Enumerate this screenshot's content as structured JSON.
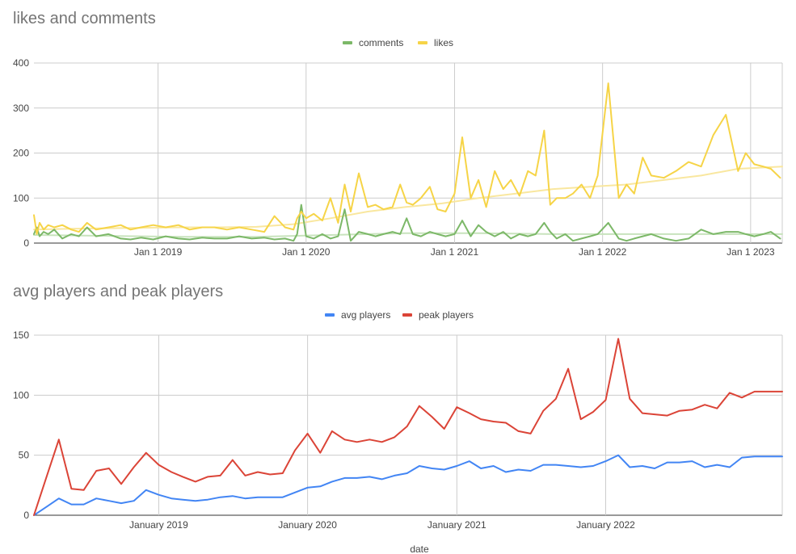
{
  "chart_data": [
    {
      "type": "line",
      "title": "likes and comments",
      "legend": "top",
      "grid": true,
      "xlabel": "",
      "ylabel": "",
      "ylim": [
        0,
        400
      ],
      "yticks": [
        0,
        100,
        200,
        300,
        400
      ],
      "xlim": [
        "2018-03-01",
        "2023-03-20"
      ],
      "xticks": [
        {
          "date": "2019-01-01",
          "label": "Jan 1 2019"
        },
        {
          "date": "2020-01-01",
          "label": "Jan 1 2020"
        },
        {
          "date": "2021-01-01",
          "label": "Jan 1 2021"
        },
        {
          "date": "2022-01-01",
          "label": "Jan 1 2022"
        },
        {
          "date": "2023-01-01",
          "label": "Jan 1 2023"
        }
      ],
      "series": [
        {
          "name": "comments",
          "color": "#7cb868",
          "x": [
            "2018-03-01",
            "2018-03-08",
            "2018-03-15",
            "2018-03-25",
            "2018-04-05",
            "2018-04-20",
            "2018-05-10",
            "2018-06-01",
            "2018-06-20",
            "2018-07-10",
            "2018-08-01",
            "2018-09-01",
            "2018-10-01",
            "2018-10-25",
            "2018-11-20",
            "2018-12-20",
            "2019-01-20",
            "2019-02-20",
            "2019-03-20",
            "2019-04-20",
            "2019-05-20",
            "2019-06-20",
            "2019-07-20",
            "2019-08-20",
            "2019-09-20",
            "2019-10-15",
            "2019-11-10",
            "2019-12-01",
            "2019-12-10",
            "2019-12-20",
            "2020-01-01",
            "2020-01-20",
            "2020-02-10",
            "2020-03-01",
            "2020-03-20",
            "2020-04-05",
            "2020-04-20",
            "2020-05-10",
            "2020-06-01",
            "2020-06-20",
            "2020-07-10",
            "2020-08-01",
            "2020-08-20",
            "2020-09-05",
            "2020-09-20",
            "2020-10-10",
            "2020-11-01",
            "2020-11-20",
            "2020-12-10",
            "2021-01-01",
            "2021-01-20",
            "2021-02-10",
            "2021-03-01",
            "2021-03-20",
            "2021-04-10",
            "2021-05-01",
            "2021-05-20",
            "2021-06-10",
            "2021-07-01",
            "2021-07-20",
            "2021-08-10",
            "2021-08-25",
            "2021-09-10",
            "2021-10-01",
            "2021-10-20",
            "2021-11-10",
            "2021-12-01",
            "2021-12-20",
            "2022-01-15",
            "2022-02-10",
            "2022-03-01",
            "2022-03-20",
            "2022-04-10",
            "2022-05-01",
            "2022-06-01",
            "2022-07-01",
            "2022-08-01",
            "2022-09-01",
            "2022-10-01",
            "2022-11-01",
            "2022-12-01",
            "2022-12-20",
            "2023-01-10",
            "2023-02-01",
            "2023-02-20",
            "2023-03-15"
          ],
          "values": [
            20,
            35,
            15,
            25,
            20,
            30,
            10,
            20,
            15,
            35,
            15,
            20,
            10,
            8,
            12,
            8,
            15,
            10,
            8,
            12,
            10,
            10,
            15,
            10,
            12,
            8,
            10,
            5,
            20,
            85,
            15,
            10,
            20,
            10,
            15,
            75,
            5,
            25,
            20,
            15,
            20,
            25,
            20,
            55,
            20,
            15,
            25,
            20,
            15,
            20,
            50,
            15,
            40,
            25,
            15,
            25,
            10,
            20,
            15,
            20,
            45,
            25,
            10,
            20,
            5,
            10,
            15,
            20,
            45,
            10,
            5,
            10,
            15,
            20,
            10,
            5,
            10,
            30,
            20,
            25,
            25,
            20,
            15,
            20,
            25,
            10
          ]
        },
        {
          "name": "likes",
          "color": "#f6d447",
          "x": [
            "2018-03-01",
            "2018-03-08",
            "2018-03-15",
            "2018-03-25",
            "2018-04-05",
            "2018-04-20",
            "2018-05-10",
            "2018-06-01",
            "2018-06-20",
            "2018-07-10",
            "2018-08-01",
            "2018-09-01",
            "2018-10-01",
            "2018-10-25",
            "2018-11-20",
            "2018-12-20",
            "2019-01-20",
            "2019-02-20",
            "2019-03-20",
            "2019-04-20",
            "2019-05-20",
            "2019-06-20",
            "2019-07-20",
            "2019-08-20",
            "2019-09-20",
            "2019-10-15",
            "2019-11-10",
            "2019-12-01",
            "2019-12-10",
            "2019-12-20",
            "2020-01-01",
            "2020-01-20",
            "2020-02-10",
            "2020-03-01",
            "2020-03-20",
            "2020-04-05",
            "2020-04-20",
            "2020-05-10",
            "2020-06-01",
            "2020-06-20",
            "2020-07-10",
            "2020-08-01",
            "2020-08-20",
            "2020-09-05",
            "2020-09-20",
            "2020-10-10",
            "2020-11-01",
            "2020-11-20",
            "2020-12-10",
            "2021-01-01",
            "2021-01-20",
            "2021-02-10",
            "2021-03-01",
            "2021-03-20",
            "2021-04-10",
            "2021-05-01",
            "2021-05-20",
            "2021-06-10",
            "2021-07-01",
            "2021-07-20",
            "2021-08-10",
            "2021-08-25",
            "2021-09-10",
            "2021-10-01",
            "2021-10-20",
            "2021-11-10",
            "2021-12-01",
            "2021-12-20",
            "2022-01-15",
            "2022-02-10",
            "2022-03-01",
            "2022-03-20",
            "2022-04-10",
            "2022-05-01",
            "2022-06-01",
            "2022-07-01",
            "2022-08-01",
            "2022-09-01",
            "2022-10-01",
            "2022-11-01",
            "2022-12-01",
            "2022-12-20",
            "2023-01-10",
            "2023-02-01",
            "2023-02-20",
            "2023-03-15"
          ],
          "values": [
            62,
            20,
            45,
            30,
            40,
            35,
            40,
            30,
            25,
            45,
            30,
            35,
            40,
            30,
            35,
            40,
            35,
            40,
            30,
            35,
            35,
            30,
            35,
            30,
            25,
            60,
            35,
            30,
            55,
            70,
            55,
            65,
            50,
            100,
            45,
            130,
            70,
            155,
            80,
            85,
            75,
            80,
            130,
            90,
            85,
            100,
            125,
            75,
            70,
            110,
            235,
            100,
            140,
            80,
            160,
            120,
            140,
            105,
            160,
            150,
            250,
            85,
            100,
            100,
            110,
            130,
            100,
            150,
            355,
            100,
            130,
            110,
            190,
            150,
            145,
            160,
            180,
            170,
            240,
            285,
            160,
            200,
            175,
            170,
            165,
            145
          ]
        },
        {
          "name": "",
          "color": "#f9e79f",
          "x": [
            "2018-03-01",
            "2018-06-01",
            "2018-09-01",
            "2018-12-01",
            "2019-03-01",
            "2019-06-01",
            "2019-09-01",
            "2019-12-01",
            "2020-03-01",
            "2020-06-01",
            "2020-09-01",
            "2020-12-01",
            "2021-03-01",
            "2021-06-01",
            "2021-09-01",
            "2021-12-01",
            "2022-03-01",
            "2022-06-01",
            "2022-09-01",
            "2022-12-01",
            "2023-03-20"
          ],
          "values": [
            30,
            32,
            33,
            34,
            35,
            35,
            36,
            42,
            55,
            70,
            80,
            88,
            100,
            110,
            120,
            125,
            130,
            140,
            150,
            165,
            170
          ]
        },
        {
          "name": "",
          "color": "#c8e3bd",
          "x": [
            "2018-03-01",
            "2018-09-01",
            "2019-03-01",
            "2019-09-01",
            "2020-03-01",
            "2020-09-01",
            "2021-03-01",
            "2021-09-01",
            "2022-03-01",
            "2022-09-01",
            "2023-03-20"
          ],
          "values": [
            18,
            16,
            14,
            14,
            18,
            22,
            22,
            20,
            20,
            20,
            20
          ]
        }
      ]
    },
    {
      "type": "line",
      "title": "avg players and peak players",
      "legend": "top",
      "grid": true,
      "xlabel": "date",
      "ylabel": "",
      "ylim": [
        0,
        150
      ],
      "yticks": [
        0,
        50,
        100,
        150
      ],
      "xlim": [
        "2018-03-01",
        "2023-03-10"
      ],
      "xticks": [
        {
          "date": "2019-01-01",
          "label": "January 2019"
        },
        {
          "date": "2020-01-01",
          "label": "January 2020"
        },
        {
          "date": "2021-01-01",
          "label": "January 2021"
        },
        {
          "date": "2022-01-01",
          "label": "January 2022"
        }
      ],
      "series": [
        {
          "name": "avg players",
          "color": "#4285f4",
          "x": [
            "2018-03-01",
            "2018-04-01",
            "2018-05-01",
            "2018-06-01",
            "2018-07-01",
            "2018-08-01",
            "2018-09-01",
            "2018-10-01",
            "2018-11-01",
            "2018-12-01",
            "2019-01-01",
            "2019-02-01",
            "2019-03-01",
            "2019-04-01",
            "2019-05-01",
            "2019-06-01",
            "2019-07-01",
            "2019-08-01",
            "2019-09-01",
            "2019-10-01",
            "2019-11-01",
            "2019-12-01",
            "2020-01-01",
            "2020-02-01",
            "2020-03-01",
            "2020-04-01",
            "2020-05-01",
            "2020-06-01",
            "2020-07-01",
            "2020-08-01",
            "2020-09-01",
            "2020-10-01",
            "2020-11-01",
            "2020-12-01",
            "2021-01-01",
            "2021-02-01",
            "2021-03-01",
            "2021-04-01",
            "2021-05-01",
            "2021-06-01",
            "2021-07-01",
            "2021-08-01",
            "2021-09-01",
            "2021-10-01",
            "2021-11-01",
            "2021-12-01",
            "2022-01-01",
            "2022-02-01",
            "2022-03-01",
            "2022-04-01",
            "2022-05-01",
            "2022-06-01",
            "2022-07-01",
            "2022-08-01",
            "2022-09-01",
            "2022-10-01",
            "2022-11-01",
            "2022-12-01",
            "2023-01-01",
            "2023-02-01",
            "2023-03-10"
          ],
          "values": [
            0,
            7,
            14,
            9,
            9,
            14,
            12,
            10,
            12,
            21,
            17,
            14,
            13,
            12,
            13,
            15,
            16,
            14,
            15,
            15,
            15,
            19,
            23,
            24,
            28,
            31,
            31,
            32,
            30,
            33,
            35,
            41,
            39,
            38,
            41,
            45,
            39,
            41,
            36,
            38,
            37,
            42,
            42,
            41,
            40,
            41,
            45,
            50,
            40,
            41,
            39,
            44,
            44,
            45,
            40,
            42,
            40,
            48,
            49,
            49,
            49
          ]
        },
        {
          "name": "peak players",
          "color": "#db4437",
          "x": [
            "2018-03-01",
            "2018-04-01",
            "2018-05-01",
            "2018-06-01",
            "2018-07-01",
            "2018-08-01",
            "2018-09-01",
            "2018-10-01",
            "2018-11-01",
            "2018-12-01",
            "2019-01-01",
            "2019-02-01",
            "2019-03-01",
            "2019-04-01",
            "2019-05-01",
            "2019-06-01",
            "2019-07-01",
            "2019-08-01",
            "2019-09-01",
            "2019-10-01",
            "2019-11-01",
            "2019-12-01",
            "2020-01-01",
            "2020-02-01",
            "2020-03-01",
            "2020-04-01",
            "2020-05-01",
            "2020-06-01",
            "2020-07-01",
            "2020-08-01",
            "2020-09-01",
            "2020-10-01",
            "2020-11-01",
            "2020-12-01",
            "2021-01-01",
            "2021-02-01",
            "2021-03-01",
            "2021-04-01",
            "2021-05-01",
            "2021-06-01",
            "2021-07-01",
            "2021-08-01",
            "2021-09-01",
            "2021-10-01",
            "2021-11-01",
            "2021-12-01",
            "2022-01-01",
            "2022-02-01",
            "2022-03-01",
            "2022-04-01",
            "2022-05-01",
            "2022-06-01",
            "2022-07-01",
            "2022-08-01",
            "2022-09-01",
            "2022-10-01",
            "2022-11-01",
            "2022-12-01",
            "2023-01-01",
            "2023-02-01",
            "2023-03-10"
          ],
          "values": [
            0,
            32,
            63,
            22,
            21,
            37,
            39,
            26,
            40,
            52,
            42,
            36,
            32,
            28,
            32,
            33,
            46,
            33,
            36,
            34,
            35,
            54,
            68,
            52,
            70,
            63,
            61,
            63,
            61,
            65,
            74,
            91,
            82,
            72,
            90,
            85,
            80,
            78,
            77,
            70,
            68,
            87,
            97,
            122,
            80,
            86,
            96,
            147,
            97,
            85,
            84,
            83,
            87,
            88,
            92,
            89,
            102,
            98,
            103,
            103,
            103
          ]
        }
      ]
    }
  ]
}
